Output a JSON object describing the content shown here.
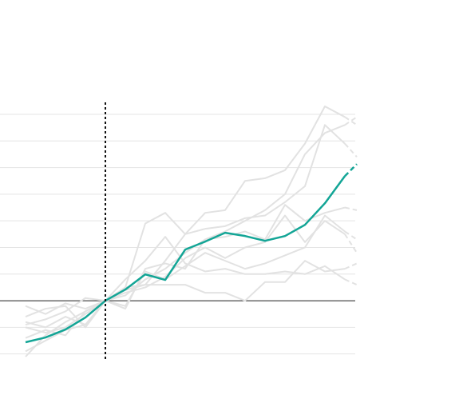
{
  "chart_data": {
    "type": "line",
    "x": [
      -4,
      -3,
      -2,
      -1,
      0,
      1,
      2,
      3,
      4,
      5,
      6,
      7,
      8,
      9,
      10,
      11,
      12,
      12.6
    ],
    "xlim": [
      -5.28,
      12.52
    ],
    "ylim": [
      -2.4,
      7.6
    ],
    "yticks": [
      -2,
      -1,
      0,
      1,
      2,
      3,
      4,
      5,
      6,
      7
    ],
    "grid": true,
    "zero_line": 0,
    "vline": 0,
    "series": [
      {
        "color": "#e2e2e2",
        "values": [
          -1.9,
          -1.5,
          -1.1,
          -0.9,
          0,
          0.5,
          2.9,
          3.3,
          2.5,
          3.3,
          3.4,
          4.5,
          4.6,
          4.9,
          5.9,
          7.3,
          6.9,
          6.6
        ]
      },
      {
        "color": "#e2e2e2",
        "values": [
          -0.8,
          -1.0,
          -0.6,
          -0.9,
          0,
          0.2,
          0.8,
          1.2,
          1.8,
          2.3,
          2.6,
          3.0,
          3.4,
          4.0,
          5.5,
          6.3,
          6.6,
          6.9
        ]
      },
      {
        "color": "#e2e2e2",
        "values": [
          -0.2,
          -0.5,
          -0.1,
          -0.3,
          0,
          0.5,
          0.6,
          1.5,
          2.5,
          2.7,
          2.8,
          3.1,
          3.2,
          3.7,
          4.3,
          6.6,
          5.9,
          5.4
        ]
      },
      {
        "color": "#e2e2e2",
        "values": [
          -1.4,
          -1.1,
          -1.3,
          -0.4,
          0,
          -0.2,
          1.1,
          0.8,
          1.3,
          1.8,
          1.5,
          1.2,
          1.4,
          1.7,
          2.0,
          3.2,
          2.6,
          2.3
        ]
      },
      {
        "color": "#e2e2e2",
        "values": [
          -2.1,
          -1.3,
          -0.8,
          -0.4,
          0,
          0.8,
          1.5,
          2.4,
          1.4,
          1.1,
          1.2,
          1.0,
          1.0,
          1.1,
          1.0,
          1.3,
          0.8,
          0.6
        ]
      },
      {
        "color": "#e2e2e2",
        "values": [
          -0.6,
          -0.3,
          -0.2,
          -1.0,
          0,
          0.3,
          0.5,
          0.9,
          1.6,
          2.0,
          1.6,
          2.0,
          2.2,
          3.2,
          2.2,
          3.0,
          2.5,
          1.8
        ]
      },
      {
        "color": "#e2e2e2",
        "values": [
          -0.9,
          -0.7,
          -0.4,
          0.1,
          0,
          0.4,
          0.6,
          0.6,
          0.6,
          0.3,
          0.3,
          0.0,
          0.7,
          0.7,
          1.5,
          1.1,
          1.2,
          1.4
        ]
      },
      {
        "color": "#e2e2e2",
        "values": [
          -1.0,
          -1.2,
          -1.0,
          -0.5,
          0,
          -0.3,
          1.2,
          1.4,
          1.2,
          2.3,
          2.4,
          2.6,
          2.3,
          3.6,
          3.0,
          3.3,
          3.5,
          3.4
        ]
      },
      {
        "color": "#13a596",
        "values": [
          -1.56,
          -1.38,
          -1.08,
          -0.63,
          0,
          0.42,
          0.99,
          0.78,
          1.92,
          2.22,
          2.55,
          2.43,
          2.25,
          2.43,
          2.85,
          3.66,
          4.68,
          5.13
        ]
      }
    ]
  }
}
